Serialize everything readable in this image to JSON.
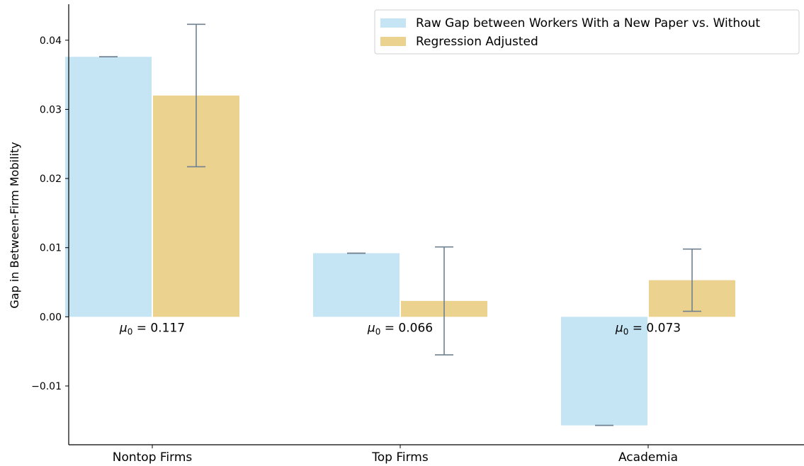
{
  "chart_data": {
    "type": "bar",
    "title": "",
    "xlabel": "",
    "ylabel": "Gap in Between-Firm Mobility",
    "categories": [
      "Nontop Firms",
      "Top Firms",
      "Academia"
    ],
    "series": [
      {
        "name": "Raw Gap between Workers With a New Paper vs. Without",
        "color": "#c5e5f4",
        "values": [
          0.0376,
          0.0092,
          -0.0157
        ],
        "error": [
          [
            0.0376,
            0.0376
          ],
          [
            0.0092,
            0.0092
          ],
          [
            -0.0157,
            -0.0157
          ]
        ]
      },
      {
        "name": "Regression Adjusted",
        "color": "#ecd28f",
        "values": [
          0.032,
          0.0023,
          0.0053
        ],
        "error": [
          [
            0.0217,
            0.0423
          ],
          [
            -0.0055,
            0.0101
          ],
          [
            0.0008,
            0.0098
          ]
        ]
      }
    ],
    "annotations": [
      "$\\mu_0 = 0.117$",
      "$\\mu_0 = 0.066$",
      "$\\mu_0 = 0.073$"
    ],
    "annotation_parts": [
      {
        "symbol": "μ",
        "sub": "0",
        "rest": " = 0.117"
      },
      {
        "symbol": "μ",
        "sub": "0",
        "rest": " = 0.066"
      },
      {
        "symbol": "μ",
        "sub": "0",
        "rest": " = 0.073"
      }
    ],
    "yticks": [
      -0.01,
      0.0,
      0.01,
      0.02,
      0.03,
      0.04
    ],
    "ytick_labels": [
      "−0.01",
      "0.00",
      "0.01",
      "0.02",
      "0.03",
      "0.04"
    ],
    "ylim": [
      -0.0185,
      0.0452
    ],
    "error_color": "#708090",
    "legend_position": "top-right",
    "grid": false
  }
}
